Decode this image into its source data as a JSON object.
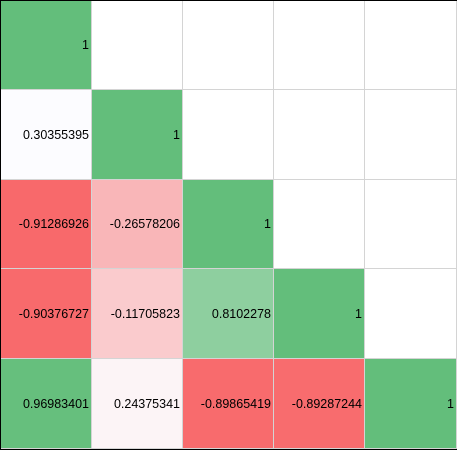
{
  "matrix": {
    "rows": [
      [
        "1",
        "",
        "",
        "",
        ""
      ],
      [
        "0.30355395",
        "1",
        "",
        "",
        ""
      ],
      [
        "-0.91286926",
        "-0.26578206",
        "1",
        "",
        ""
      ],
      [
        "-0.90376727",
        "-0.11705823",
        "0.8102278",
        "1",
        ""
      ],
      [
        "0.96983401",
        "0.24375341",
        "-0.89865419",
        "-0.89287244",
        "1"
      ]
    ]
  },
  "colors": {
    "positive_max": "#63be7b",
    "neutral": "#fcfcff",
    "negative_max": "#f8696b",
    "grid_line": "#d4d4d4",
    "frame": "#000000"
  }
}
